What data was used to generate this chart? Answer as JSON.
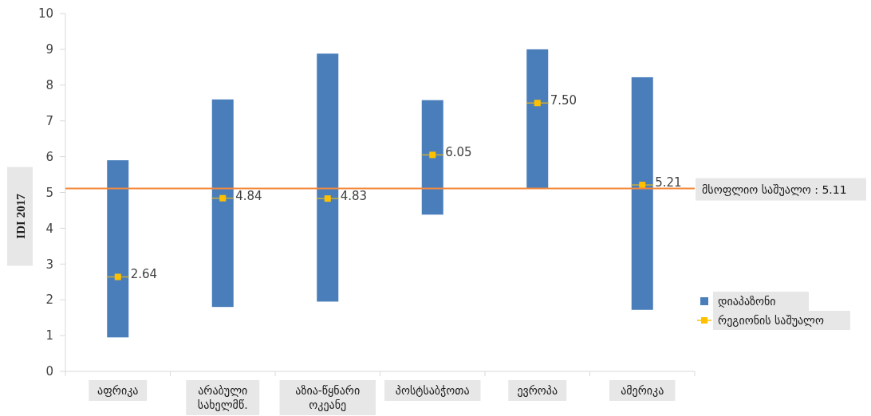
{
  "chart_data": {
    "type": "bar",
    "ylabel": "IDI 2017",
    "categories": [
      "აფრიკა",
      "არაბული სახელმწ.",
      "აზია-წყნარი ოკეანე",
      "პოსტსაბჭოთა",
      "ევროპა",
      "ამერიკა"
    ],
    "series": [
      {
        "name": "დიაპაზონი",
        "color": "#4a7ebb",
        "base": [
          0.95,
          1.8,
          1.95,
          4.38,
          5.12,
          1.72
        ],
        "values": [
          4.95,
          5.8,
          6.93,
          3.2,
          3.88,
          6.5
        ]
      },
      {
        "name": "რეგიონის საშუალო",
        "type": "scatter",
        "color": "#ffc000",
        "x": [
          "აფრიკა",
          "არაბული სახელმწ.",
          "აზია-წყნარი ოკეანე",
          "პოსტსაბჭოთა",
          "ევროპა",
          "ამერიკა"
        ],
        "values": [
          2.64,
          4.84,
          4.83,
          6.05,
          7.5,
          5.21
        ],
        "value_labels": [
          "2.64",
          "4.84",
          "4.83",
          "6.05",
          "7.50",
          "5.21"
        ]
      }
    ],
    "ylim": [
      0,
      10
    ],
    "yticks": [
      0,
      1,
      2,
      3,
      4,
      5,
      6,
      7,
      8,
      9,
      10
    ],
    "ref_lines": [
      {
        "axis": "y",
        "value": 5.11,
        "label": "მსოფლიო საშუალო : 5.11",
        "color": "#f4883a"
      }
    ],
    "marker": "square",
    "grid": false,
    "legend": "right"
  }
}
